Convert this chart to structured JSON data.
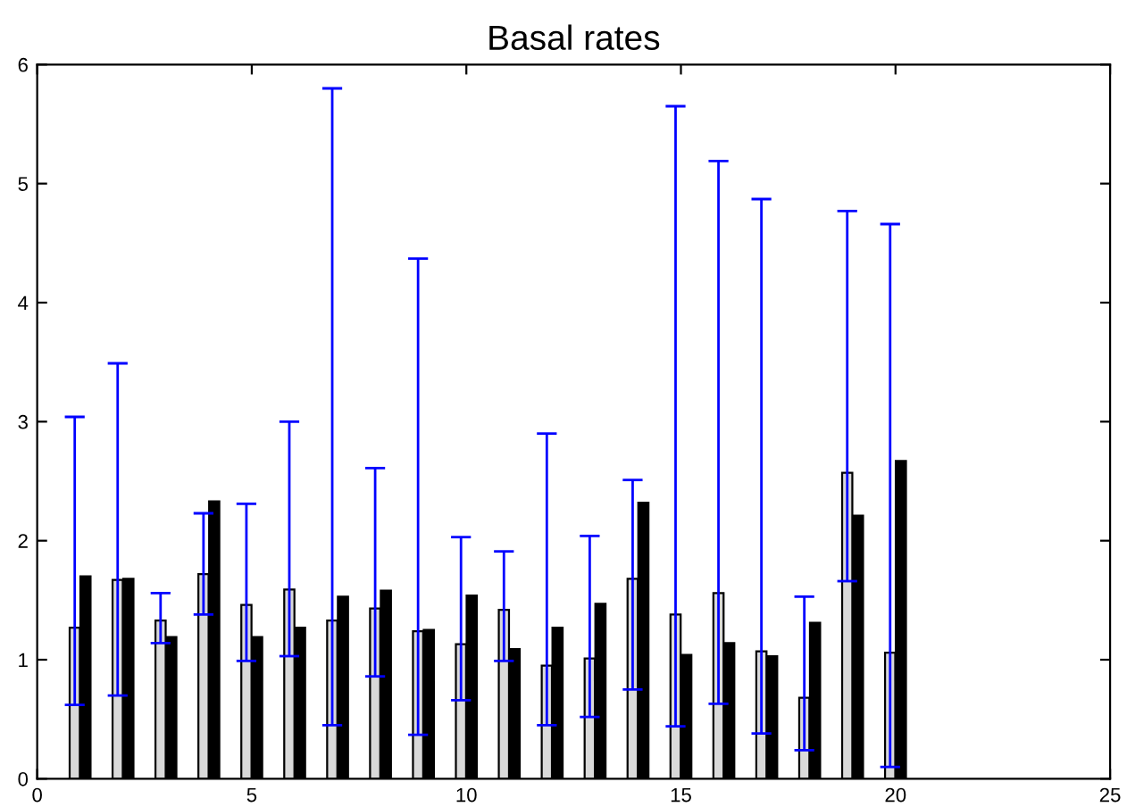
{
  "chart_data": {
    "type": "bar",
    "title": "Basal rates",
    "x": [
      1,
      2,
      3,
      4,
      5,
      6,
      7,
      8,
      9,
      10,
      11,
      12,
      13,
      14,
      15,
      16,
      17,
      18,
      19,
      20
    ],
    "series": [
      {
        "color": "#d9d9d9",
        "values": [
          1.27,
          1.67,
          1.33,
          1.72,
          1.46,
          1.59,
          1.33,
          1.43,
          1.24,
          1.13,
          1.42,
          0.95,
          1.01,
          1.68,
          1.38,
          1.56,
          1.07,
          0.68,
          2.57,
          1.06
        ],
        "errors": [
          [
            0.62,
            3.04
          ],
          [
            0.7,
            3.49
          ],
          [
            1.14,
            1.56
          ],
          [
            1.38,
            2.23
          ],
          [
            0.99,
            2.31
          ],
          [
            1.03,
            3.0
          ],
          [
            0.45,
            5.8
          ],
          [
            0.86,
            2.61
          ],
          [
            0.37,
            4.37
          ],
          [
            0.66,
            2.03
          ],
          [
            0.99,
            1.91
          ],
          [
            0.45,
            2.9
          ],
          [
            0.52,
            2.04
          ],
          [
            0.75,
            2.51
          ],
          [
            0.44,
            5.65
          ],
          [
            0.63,
            5.19
          ],
          [
            0.38,
            4.87
          ],
          [
            0.24,
            1.53
          ],
          [
            1.66,
            4.77
          ],
          [
            0.1,
            4.66
          ]
        ]
      },
      {
        "color": "#000000",
        "values": [
          1.7,
          1.68,
          1.19,
          2.33,
          1.19,
          1.27,
          1.53,
          1.58,
          1.25,
          1.54,
          1.09,
          1.27,
          1.47,
          2.32,
          1.04,
          1.14,
          1.03,
          1.31,
          2.21,
          2.67
        ]
      }
    ],
    "xlim": [
      0,
      25
    ],
    "xticks": [
      0,
      5,
      10,
      15,
      20,
      25
    ],
    "ylim": [
      0,
      6
    ],
    "yticks": [
      0,
      1,
      2,
      3,
      4,
      5,
      6
    ],
    "grid": false
  }
}
